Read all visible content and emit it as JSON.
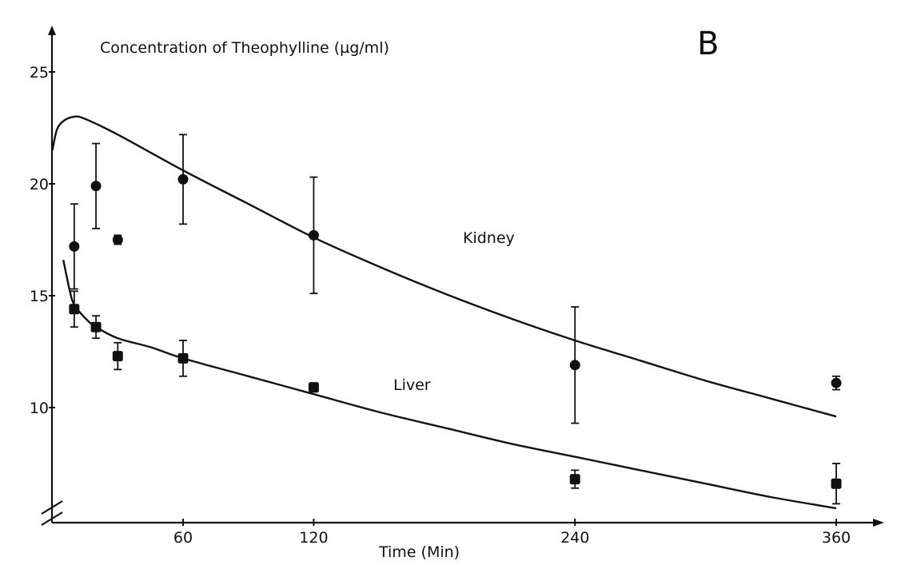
{
  "chart_data": {
    "type": "line",
    "panel_label": "B",
    "ylabel": "Concentration of Theophylline (µg/ml)",
    "xlabel": "Time (Min)",
    "xlim": [
      0,
      380
    ],
    "ylim": [
      5,
      26
    ],
    "x_ticks": [
      60,
      120,
      240,
      360
    ],
    "y_ticks": [
      10,
      15,
      20,
      25
    ],
    "axis_break": "y",
    "grid": false,
    "series": [
      {
        "name": "Kidney",
        "fit_curve": [
          [
            0,
            21.5
          ],
          [
            2,
            22.4
          ],
          [
            5,
            22.8
          ],
          [
            10,
            23.0
          ],
          [
            15,
            22.9
          ],
          [
            30,
            22.2
          ],
          [
            60,
            20.6
          ],
          [
            90,
            19.1
          ],
          [
            120,
            17.6
          ],
          [
            150,
            16.3
          ],
          [
            180,
            15.1
          ],
          [
            210,
            14.0
          ],
          [
            240,
            13.0
          ],
          [
            270,
            12.1
          ],
          [
            300,
            11.2
          ],
          [
            330,
            10.4
          ],
          [
            360,
            9.6
          ]
        ],
        "points": [
          {
            "x": 10,
            "y": 17.2,
            "err": 1.9
          },
          {
            "x": 20,
            "y": 19.9,
            "err": 1.9
          },
          {
            "x": 30,
            "y": 17.5,
            "err": 0.2
          },
          {
            "x": 60,
            "y": 20.2,
            "err": 2.0
          },
          {
            "x": 120,
            "y": 17.7,
            "err": 2.6
          },
          {
            "x": 240,
            "y": 11.9,
            "err": 2.6
          },
          {
            "x": 360,
            "y": 11.1,
            "err": 0.3
          }
        ]
      },
      {
        "name": "Liver",
        "fit_curve": [
          [
            5,
            16.6
          ],
          [
            8,
            15.2
          ],
          [
            10,
            14.6
          ],
          [
            15,
            14.0
          ],
          [
            20,
            13.6
          ],
          [
            30,
            13.1
          ],
          [
            45,
            12.7
          ],
          [
            60,
            12.2
          ],
          [
            90,
            11.4
          ],
          [
            120,
            10.6
          ],
          [
            150,
            9.8
          ],
          [
            180,
            9.1
          ],
          [
            210,
            8.4
          ],
          [
            240,
            7.8
          ],
          [
            270,
            7.2
          ],
          [
            300,
            6.6
          ],
          [
            330,
            6.0
          ],
          [
            360,
            5.5
          ]
        ],
        "points": [
          {
            "x": 10,
            "y": 14.4,
            "err": 0.8
          },
          {
            "x": 20,
            "y": 13.6,
            "err": 0.5
          },
          {
            "x": 30,
            "y": 12.3,
            "err": 0.6
          },
          {
            "x": 60,
            "y": 12.2,
            "err": 0.8
          },
          {
            "x": 120,
            "y": 10.9,
            "err": 0.2
          },
          {
            "x": 240,
            "y": 6.8,
            "err": 0.4
          },
          {
            "x": 360,
            "y": 6.6,
            "err": 0.9
          }
        ]
      }
    ]
  }
}
